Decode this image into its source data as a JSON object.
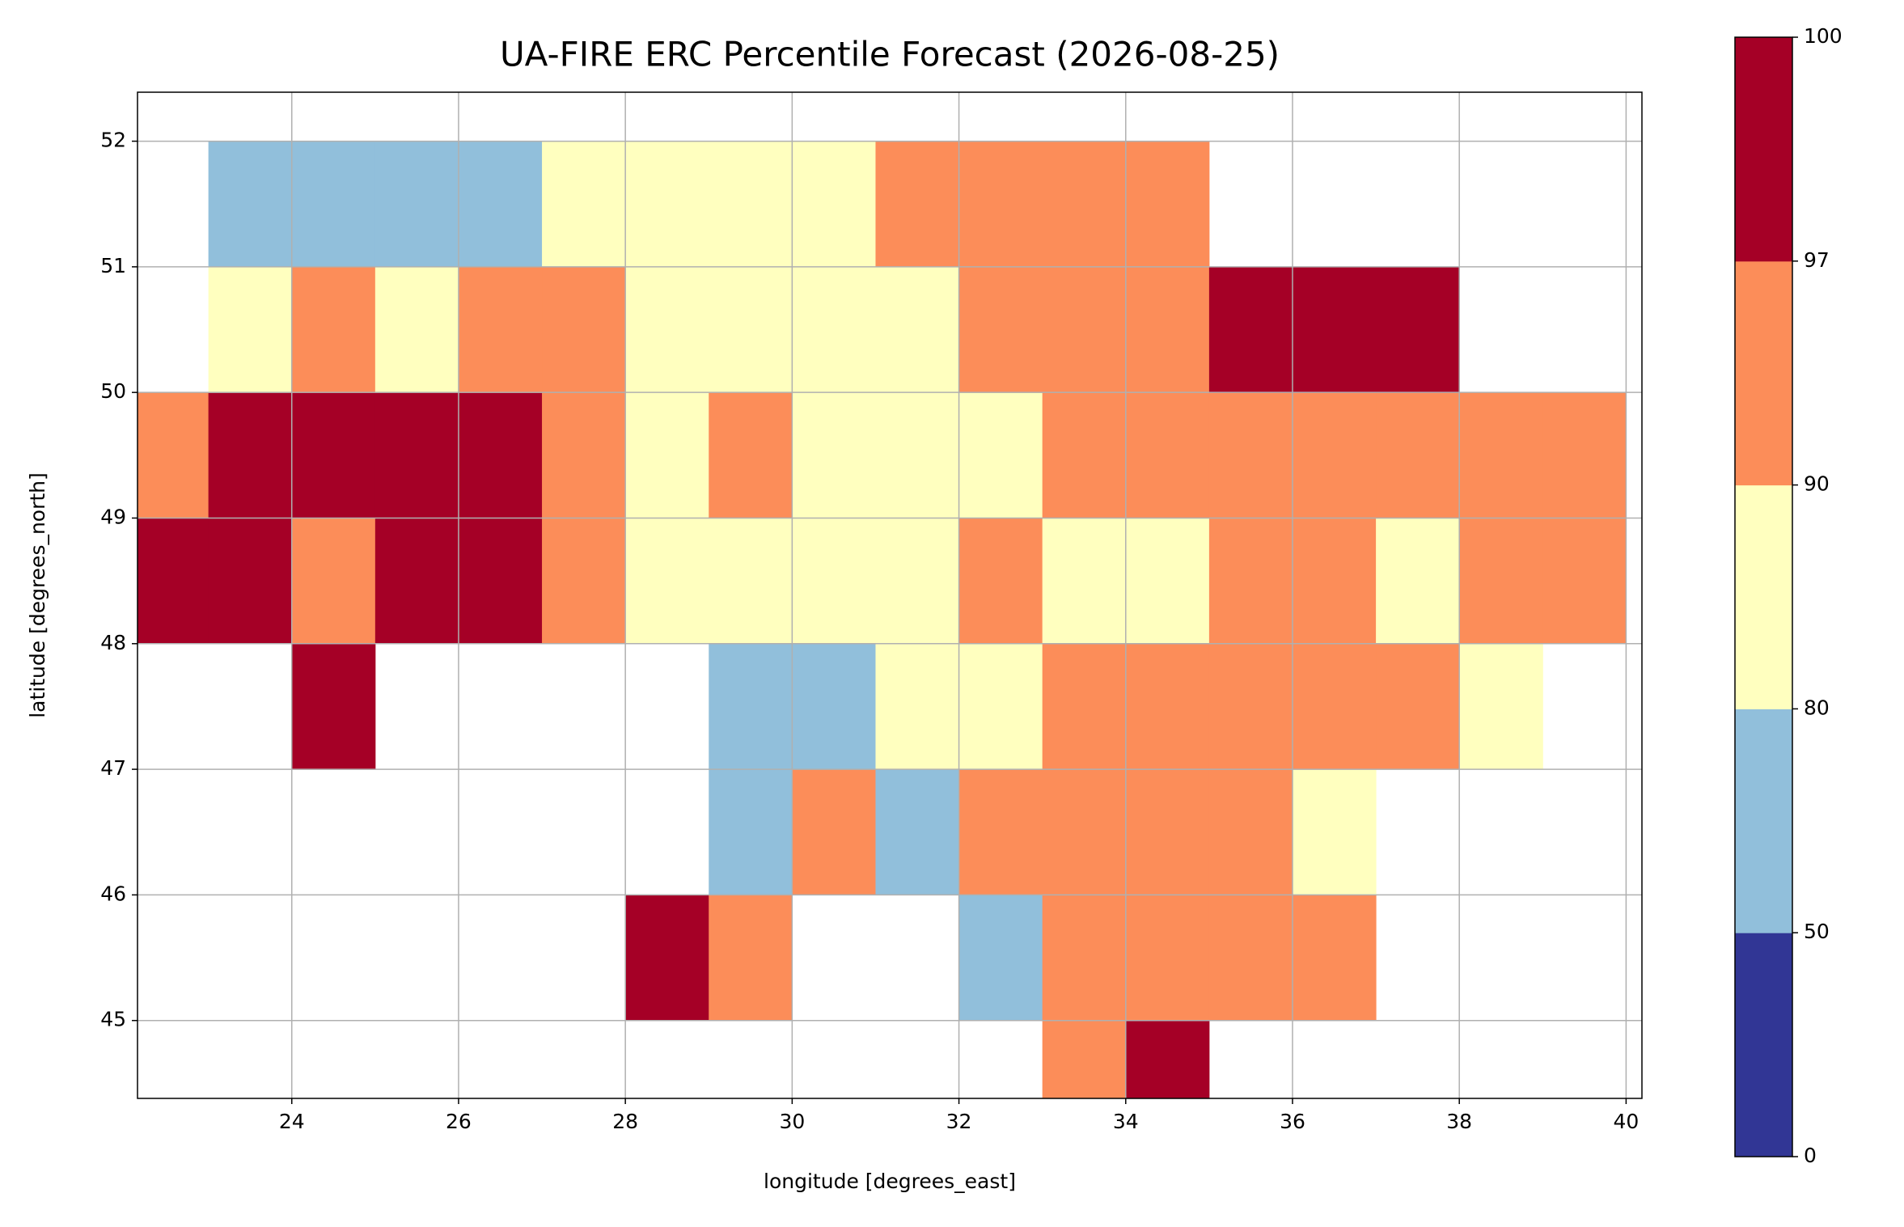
{
  "chart_data": {
    "type": "heatmap",
    "title": "UA-FIRE ERC Percentile Forecast (2026-08-25)",
    "x_label": "longitude [degrees_east]",
    "y_label": "latitude [degrees_north]",
    "xlim": [
      22.15,
      40.19
    ],
    "ylim": [
      44.38,
      52.39
    ],
    "xticks": [
      24,
      26,
      28,
      30,
      32,
      34,
      36,
      38,
      40
    ],
    "yticks": [
      45,
      46,
      47,
      48,
      49,
      50,
      51,
      52
    ],
    "grid": true,
    "xbins": [
      22,
      23,
      24,
      25,
      26,
      27,
      28,
      29,
      30,
      31,
      32,
      33,
      34,
      35,
      36,
      37,
      38,
      39,
      40
    ],
    "ybins": [
      44,
      45,
      46,
      47,
      48,
      49,
      50,
      51,
      52
    ],
    "values": [
      [
        null,
        null,
        null,
        null,
        null,
        null,
        null,
        null,
        null,
        null,
        null,
        95,
        99,
        null,
        null,
        null,
        null,
        null
      ],
      [
        null,
        null,
        null,
        null,
        null,
        null,
        99,
        95,
        null,
        null,
        70,
        95,
        95,
        95,
        95,
        null,
        null,
        null
      ],
      [
        null,
        null,
        null,
        null,
        null,
        null,
        null,
        70,
        95,
        70,
        95,
        95,
        95,
        95,
        85,
        null,
        null,
        null
      ],
      [
        null,
        null,
        99,
        null,
        null,
        null,
        null,
        70,
        70,
        85,
        85,
        95,
        95,
        95,
        95,
        95,
        85,
        null
      ],
      [
        99,
        99,
        95,
        99,
        99,
        95,
        85,
        85,
        85,
        85,
        95,
        85,
        85,
        95,
        95,
        85,
        95,
        95
      ],
      [
        95,
        99,
        99,
        99,
        99,
        95,
        85,
        95,
        85,
        85,
        85,
        95,
        95,
        95,
        95,
        95,
        95,
        95
      ],
      [
        null,
        85,
        95,
        85,
        95,
        95,
        85,
        85,
        85,
        85,
        95,
        95,
        95,
        99,
        99,
        99,
        null,
        null
      ],
      [
        null,
        70,
        70,
        70,
        70,
        85,
        85,
        85,
        85,
        95,
        95,
        95,
        95,
        null,
        null,
        null,
        null,
        null
      ]
    ],
    "colorbar": {
      "boundaries": [
        0,
        50,
        80,
        90,
        97,
        100
      ],
      "colors": [
        "#313695",
        "#91bfdb",
        "#ffffbf",
        "#fc8d59",
        "#a50026"
      ]
    }
  }
}
